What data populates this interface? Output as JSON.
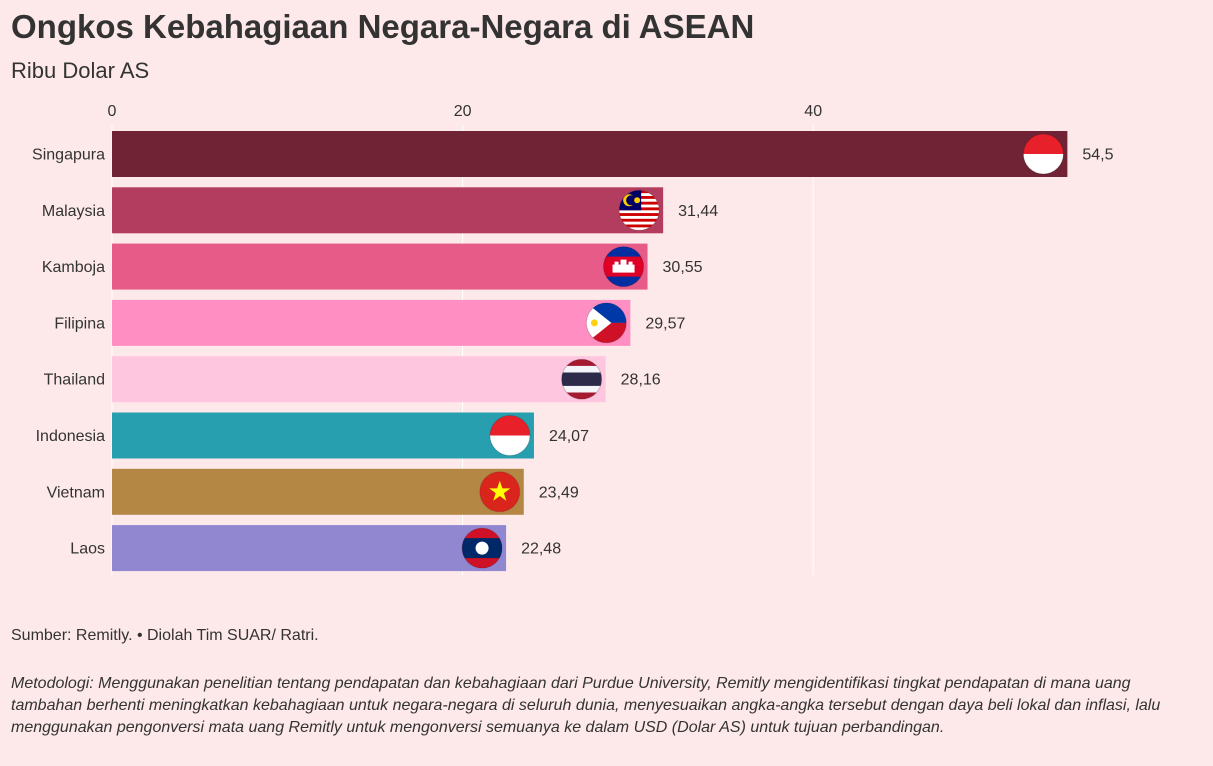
{
  "header": {
    "title": "Ongkos Kebahagiaan Negara-Negara di ASEAN",
    "subtitle": "Ribu Dolar AS"
  },
  "chart_data": {
    "type": "bar",
    "orientation": "horizontal",
    "title": "Ongkos Kebahagiaan Negara-Negara di ASEAN",
    "subtitle": "Ribu Dolar AS",
    "xlabel": "",
    "ylabel": "",
    "xlim": [
      0,
      54.5
    ],
    "ticks": [
      0,
      20,
      40
    ],
    "tick_labels": [
      "0",
      "20",
      "40"
    ],
    "grid": true,
    "legend": "none",
    "categories": [
      "Singapura",
      "Malaysia",
      "Kamboja",
      "Filipina",
      "Thailand",
      "Indonesia",
      "Vietnam",
      "Laos"
    ],
    "values": [
      54.5,
      31.44,
      30.55,
      29.57,
      28.16,
      24.07,
      23.49,
      22.48
    ],
    "value_labels": [
      "54,5",
      "31,44",
      "30,55",
      "29,57",
      "28,16",
      "24,07",
      "23,49",
      "22,48"
    ],
    "colors": [
      "#6f2335",
      "#b23d5e",
      "#e75b88",
      "#ff8fc2",
      "#ffc6df",
      "#279faf",
      "#b58744",
      "#9187d1"
    ],
    "flag_icons": [
      "flag-singapore-icon",
      "flag-malaysia-icon",
      "flag-cambodia-icon",
      "flag-philippines-icon",
      "flag-thailand-icon",
      "flag-indonesia-icon",
      "flag-vietnam-icon",
      "flag-laos-icon"
    ]
  },
  "footer": {
    "source": "Sumber: Remitly. • Diolah Tim SUAR/ Ratri.",
    "methodology": "Metodologi: Menggunakan penelitian tentang pendapatan dan kebahagiaan dari Purdue University, Remitly mengidentifikasi tingkat pendapatan di mana uang tambahan berhenti meningkatkan kebahagiaan untuk negara-negara di seluruh dunia, menyesuaikan angka-angka tersebut dengan daya beli lokal dan inflasi, lalu menggunakan pengonversi mata uang Remitly untuk mengonversi semuanya ke dalam USD (Dolar AS) untuk tujuan perbandingan."
  }
}
